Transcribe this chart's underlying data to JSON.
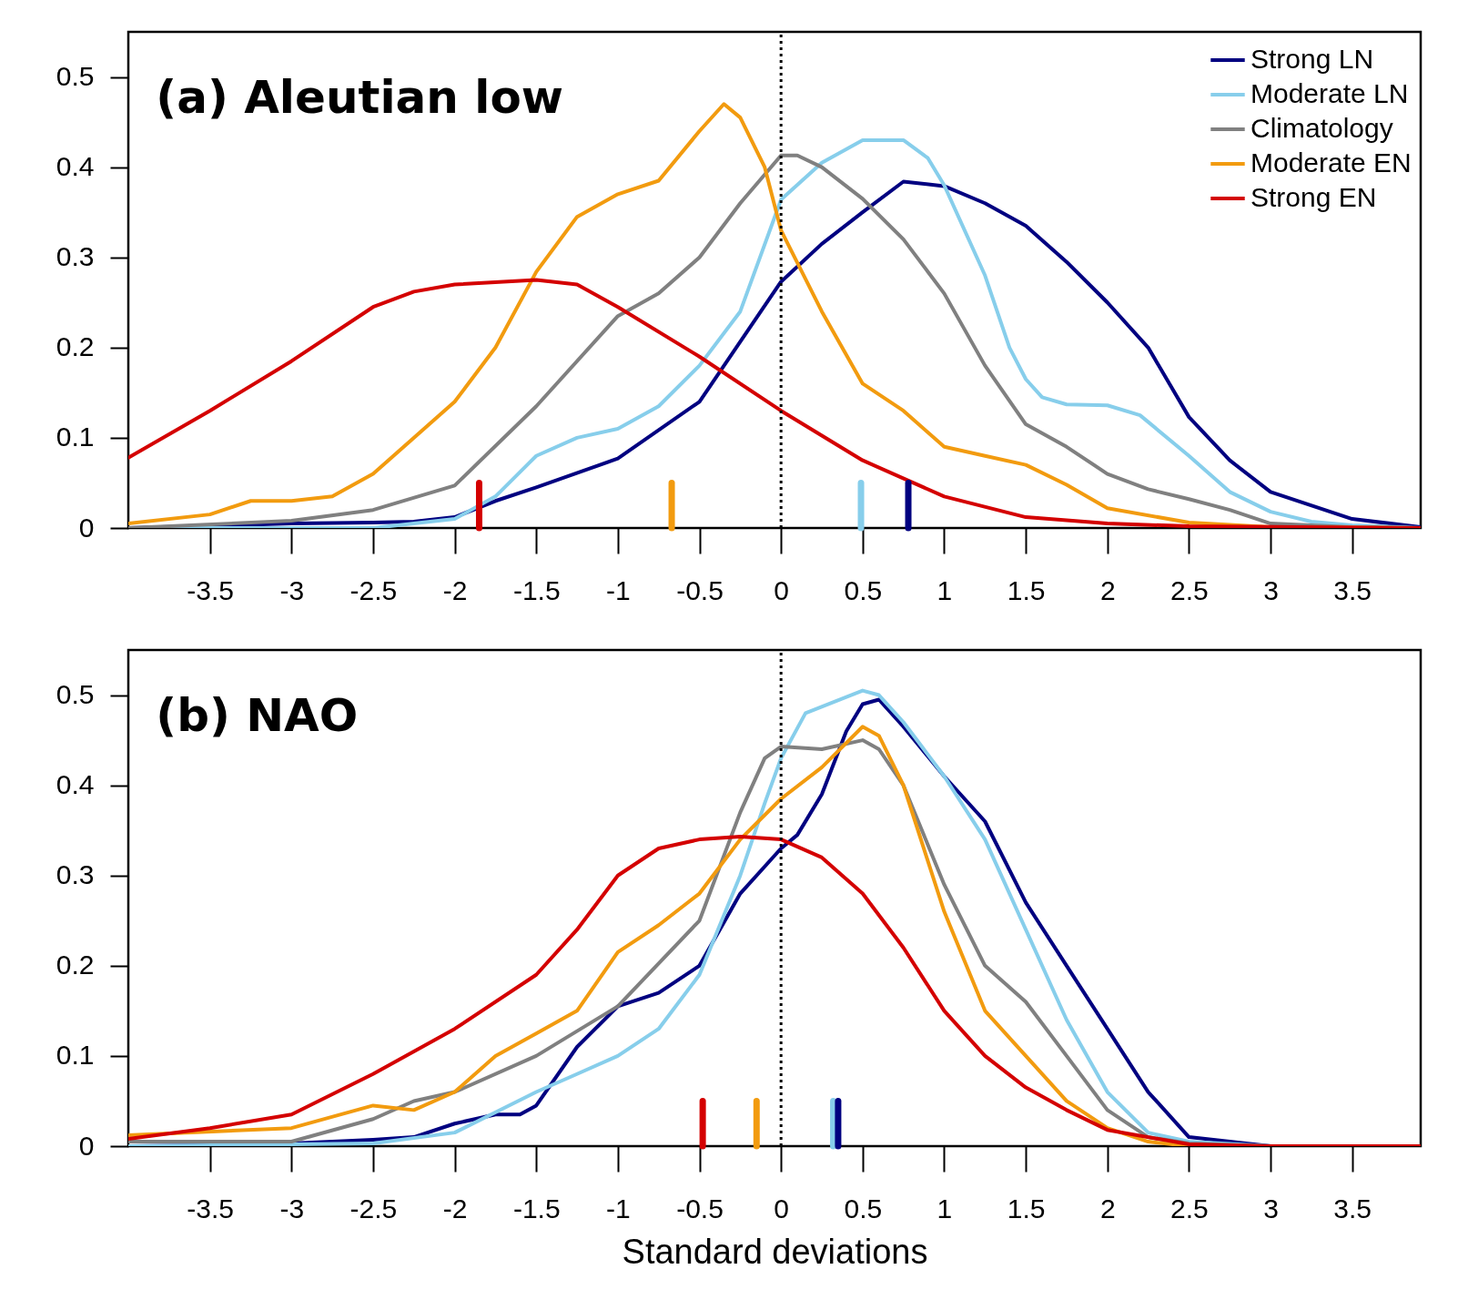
{
  "chart_data": [
    {
      "type": "line",
      "title": "(a) Aleutian low",
      "legend": "top right",
      "grid": false,
      "xlim": [
        -4,
        3.92
      ],
      "xticks": [
        -3.5,
        -3,
        -2.5,
        -2,
        -1.5,
        -1,
        -0.5,
        0,
        0.5,
        1,
        1.5,
        2,
        2.5,
        3,
        3.5
      ],
      "ylim": [
        0,
        0.55
      ],
      "yticks": [
        0,
        0.1,
        0.2,
        0.3,
        0.4,
        0.5
      ],
      "series": [
        {
          "name": "Strong LN",
          "color": "#000080",
          "x": [
            -4,
            -3,
            -2.5,
            -2.25,
            -2,
            -1.75,
            -1.5,
            -1,
            -0.5,
            0,
            0.25,
            0.5,
            0.75,
            1,
            1.25,
            1.5,
            1.75,
            2,
            2.25,
            2.5,
            2.75,
            3,
            3.5,
            3.92
          ],
          "values": [
            0,
            0.005,
            0.006,
            0.007,
            0.012,
            0.03,
            0.045,
            0.077,
            0.14,
            0.273,
            0.315,
            0.35,
            0.384,
            0.379,
            0.36,
            0.335,
            0.295,
            0.25,
            0.2,
            0.123,
            0.075,
            0.04,
            0.01,
            0.001
          ]
        },
        {
          "name": "Moderate LN",
          "color": "#87ceeb",
          "x": [
            -4,
            -2.5,
            -2,
            -1.75,
            -1.5,
            -1.25,
            -1,
            -0.75,
            -0.5,
            -0.25,
            0,
            0.25,
            0.5,
            0.75,
            0.9,
            1,
            1.25,
            1.4,
            1.5,
            1.6,
            1.75,
            2,
            2.2,
            2.5,
            2.75,
            3,
            3.25,
            3.5,
            3.92
          ],
          "values": [
            0,
            0,
            0.01,
            0.035,
            0.08,
            0.1,
            0.11,
            0.135,
            0.18,
            0.24,
            0.364,
            0.405,
            0.43,
            0.43,
            0.41,
            0.38,
            0.28,
            0.2,
            0.165,
            0.145,
            0.137,
            0.136,
            0.125,
            0.08,
            0.04,
            0.018,
            0.007,
            0.003,
            0
          ]
        },
        {
          "name": "Climatology",
          "color": "#808080",
          "x": [
            -4,
            -3,
            -2.5,
            -2,
            -1.5,
            -1,
            -0.75,
            -0.5,
            -0.25,
            0,
            0.1,
            0.25,
            0.5,
            0.75,
            1,
            1.25,
            1.5,
            1.75,
            2,
            2.25,
            2.5,
            2.75,
            3,
            3.5,
            3.92
          ],
          "values": [
            0,
            0.008,
            0.02,
            0.047,
            0.135,
            0.235,
            0.26,
            0.3,
            0.36,
            0.413,
            0.413,
            0.4,
            0.365,
            0.32,
            0.26,
            0.18,
            0.115,
            0.09,
            0.06,
            0.043,
            0.032,
            0.02,
            0.005,
            0.001,
            0
          ]
        },
        {
          "name": "Moderate EN",
          "color": "#f29b0f",
          "x": [
            -4,
            -3.5,
            -3.25,
            -3,
            -2.75,
            -2.5,
            -2,
            -1.75,
            -1.5,
            -1.25,
            -1,
            -0.75,
            -0.5,
            -0.35,
            -0.25,
            -0.1,
            0,
            0.25,
            0.5,
            0.75,
            1,
            1.25,
            1.5,
            1.75,
            2,
            2.5,
            3,
            3.92
          ],
          "values": [
            0.005,
            0.015,
            0.03,
            0.03,
            0.035,
            0.06,
            0.14,
            0.2,
            0.284,
            0.345,
            0.37,
            0.385,
            0.44,
            0.47,
            0.455,
            0.4,
            0.33,
            0.24,
            0.16,
            0.13,
            0.09,
            0.08,
            0.07,
            0.048,
            0.022,
            0.006,
            0.001,
            0
          ]
        },
        {
          "name": "Strong EN",
          "color": "#d40000",
          "x": [
            -4,
            -3.5,
            -3,
            -2.5,
            -2.25,
            -2,
            -1.5,
            -1.25,
            -1,
            -0.5,
            0,
            0.5,
            1,
            1.5,
            2,
            2.5,
            3.92
          ],
          "values": [
            0.078,
            0.13,
            0.185,
            0.245,
            0.262,
            0.27,
            0.275,
            0.27,
            0.245,
            0.19,
            0.13,
            0.075,
            0.035,
            0.012,
            0.005,
            0.002,
            0
          ]
        }
      ],
      "ref_lines": [
        {
          "axis": "x",
          "value": 0,
          "color": "#000000",
          "line_style": "dotted"
        },
        {
          "axis": "x",
          "value": -1.85,
          "color": "#d40000"
        },
        {
          "axis": "x",
          "value": -0.67,
          "color": "#f29b0f"
        },
        {
          "axis": "x",
          "value": 0.49,
          "color": "#87ceeb"
        },
        {
          "axis": "x",
          "value": 0.78,
          "color": "#000080"
        }
      ]
    },
    {
      "type": "line",
      "title": "(b) NAO",
      "xlabel": "Standard deviations",
      "grid": false,
      "xlim": [
        -4,
        3.92
      ],
      "xticks": [
        -3.5,
        -3,
        -2.5,
        -2,
        -1.5,
        -1,
        -0.5,
        0,
        0.5,
        1,
        1.5,
        2,
        2.5,
        3,
        3.5
      ],
      "ylim": [
        0,
        0.55
      ],
      "yticks": [
        0,
        0.1,
        0.2,
        0.3,
        0.4,
        0.5
      ],
      "series": [
        {
          "color": "#000080",
          "x": [
            -4,
            -3,
            -2.5,
            -2.25,
            -2,
            -1.75,
            -1.6,
            -1.5,
            -1.25,
            -1,
            -0.75,
            -0.5,
            -0.25,
            0,
            0.1,
            0.25,
            0.4,
            0.5,
            0.6,
            0.75,
            1,
            1.25,
            1.5,
            1.75,
            2,
            2.25,
            2.5,
            3,
            3.92
          ],
          "values": [
            0.005,
            0.003,
            0.007,
            0.01,
            0.025,
            0.035,
            0.035,
            0.045,
            0.11,
            0.155,
            0.17,
            0.2,
            0.28,
            0.33,
            0.345,
            0.39,
            0.46,
            0.49,
            0.495,
            0.465,
            0.41,
            0.36,
            0.27,
            0.2,
            0.13,
            0.06,
            0.01,
            0,
            0
          ]
        },
        {
          "color": "#87ceeb",
          "x": [
            -4,
            -2.5,
            -2,
            -1.5,
            -1.25,
            -1,
            -0.75,
            -0.5,
            -0.25,
            -0.1,
            0,
            0.15,
            0.5,
            0.6,
            0.75,
            1,
            1.25,
            1.5,
            1.75,
            2,
            2.25,
            2.5,
            3,
            3.92
          ],
          "values": [
            0,
            0.003,
            0.015,
            0.06,
            0.08,
            0.1,
            0.13,
            0.19,
            0.3,
            0.38,
            0.43,
            0.48,
            0.505,
            0.5,
            0.47,
            0.41,
            0.34,
            0.24,
            0.14,
            0.06,
            0.015,
            0.005,
            0,
            0
          ]
        },
        {
          "color": "#808080",
          "x": [
            -4,
            -3,
            -2.5,
            -2.25,
            -2,
            -1.5,
            -1,
            -0.5,
            -0.25,
            -0.1,
            0,
            0.25,
            0.5,
            0.6,
            0.75,
            1,
            1.25,
            1.5,
            1.75,
            2,
            2.25,
            2.5,
            3,
            3.92
          ],
          "values": [
            0.005,
            0.005,
            0.03,
            0.05,
            0.06,
            0.1,
            0.155,
            0.25,
            0.37,
            0.43,
            0.443,
            0.44,
            0.45,
            0.44,
            0.4,
            0.29,
            0.2,
            0.16,
            0.1,
            0.04,
            0.01,
            0.003,
            0,
            0
          ]
        },
        {
          "color": "#f29b0f",
          "x": [
            -4,
            -3,
            -2.5,
            -2.25,
            -2,
            -1.75,
            -1.5,
            -1.25,
            -1,
            -0.75,
            -0.5,
            -0.25,
            0,
            0.25,
            0.5,
            0.6,
            0.75,
            1,
            1.25,
            1.5,
            1.75,
            2,
            2.25,
            2.5,
            3.92
          ],
          "values": [
            0.012,
            0.02,
            0.045,
            0.04,
            0.06,
            0.1,
            0.125,
            0.15,
            0.215,
            0.245,
            0.28,
            0.34,
            0.385,
            0.42,
            0.465,
            0.455,
            0.4,
            0.26,
            0.15,
            0.1,
            0.05,
            0.02,
            0.005,
            0,
            0
          ]
        },
        {
          "color": "#d40000",
          "x": [
            -4,
            -3.5,
            -3,
            -2.5,
            -2,
            -1.5,
            -1.25,
            -1,
            -0.75,
            -0.5,
            -0.25,
            0,
            0.25,
            0.5,
            0.75,
            1,
            1.25,
            1.5,
            1.75,
            2,
            2.5,
            3,
            3.92
          ],
          "values": [
            0.008,
            0.02,
            0.035,
            0.08,
            0.13,
            0.19,
            0.24,
            0.3,
            0.33,
            0.34,
            0.343,
            0.34,
            0.32,
            0.28,
            0.22,
            0.15,
            0.1,
            0.065,
            0.04,
            0.018,
            0.002,
            0,
            0
          ]
        }
      ],
      "ref_lines": [
        {
          "axis": "x",
          "value": 0,
          "color": "#000000",
          "line_style": "dotted"
        },
        {
          "axis": "x",
          "value": -0.48,
          "color": "#d40000"
        },
        {
          "axis": "x",
          "value": -0.15,
          "color": "#f29b0f"
        },
        {
          "axis": "x",
          "value": 0.32,
          "color": "#87ceeb"
        },
        {
          "axis": "x",
          "value": 0.35,
          "color": "#000080"
        }
      ]
    }
  ]
}
